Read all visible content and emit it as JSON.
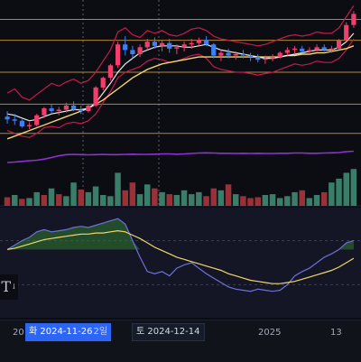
{
  "toolbar": {
    "text_tool_glyph": "T",
    "text_tool_sub": "↓"
  },
  "time_axis": {
    "ticks": [
      "20",
      "2025",
      "13"
    ],
    "crosshair_date_1": "화 2024-11-26",
    "crosshair_date_1_suffix": "2일",
    "crosshair_date_2": "토 2024-12-14"
  },
  "colors": {
    "background": "#0b0d12",
    "up_candle": "#f23d6d",
    "down_candle": "#3f7ff3",
    "ma_long": "#f2d56b",
    "ma_short": "#ffffff",
    "band": "#c61a4b",
    "indicator_line": "#8e32d6",
    "level_line": "#d39a3a",
    "volume_up": "#3f8a73",
    "volume_down": "#a8353e",
    "oscillator_fill": "#2f7a2f",
    "oscillator_line": "#6f6fd8"
  },
  "chart_data": {
    "type": "candlestick",
    "panes": [
      "price",
      "indicator",
      "volume",
      "oscillator"
    ],
    "price": {
      "candles": [
        [
          0.38,
          0.42,
          0.33,
          0.36
        ],
        [
          0.36,
          0.4,
          0.32,
          0.35
        ],
        [
          0.35,
          0.36,
          0.3,
          0.31
        ],
        [
          0.31,
          0.34,
          0.29,
          0.32
        ],
        [
          0.32,
          0.4,
          0.31,
          0.39
        ],
        [
          0.39,
          0.45,
          0.37,
          0.44
        ],
        [
          0.44,
          0.47,
          0.4,
          0.42
        ],
        [
          0.42,
          0.45,
          0.39,
          0.43
        ],
        [
          0.43,
          0.48,
          0.41,
          0.46
        ],
        [
          0.46,
          0.49,
          0.42,
          0.43
        ],
        [
          0.43,
          0.46,
          0.4,
          0.42
        ],
        [
          0.42,
          0.47,
          0.41,
          0.46
        ],
        [
          0.46,
          0.6,
          0.45,
          0.59
        ],
        [
          0.59,
          0.67,
          0.57,
          0.66
        ],
        [
          0.66,
          0.76,
          0.64,
          0.75
        ],
        [
          0.75,
          0.92,
          0.73,
          0.9
        ],
        [
          0.9,
          0.96,
          0.82,
          0.86
        ],
        [
          0.86,
          0.89,
          0.8,
          0.83
        ],
        [
          0.83,
          0.9,
          0.81,
          0.88
        ],
        [
          0.88,
          0.94,
          0.86,
          0.92
        ],
        [
          0.92,
          0.95,
          0.87,
          0.89
        ],
        [
          0.89,
          0.93,
          0.85,
          0.91
        ],
        [
          0.91,
          0.94,
          0.84,
          0.87
        ],
        [
          0.87,
          0.9,
          0.83,
          0.88
        ],
        [
          0.88,
          0.92,
          0.85,
          0.9
        ],
        [
          0.9,
          0.94,
          0.87,
          0.91
        ],
        [
          0.91,
          0.95,
          0.89,
          0.93
        ],
        [
          0.93,
          0.96,
          0.89,
          0.9
        ],
        [
          0.9,
          0.91,
          0.8,
          0.82
        ],
        [
          0.82,
          0.86,
          0.78,
          0.84
        ],
        [
          0.84,
          0.87,
          0.8,
          0.82
        ],
        [
          0.82,
          0.85,
          0.79,
          0.83
        ],
        [
          0.83,
          0.86,
          0.8,
          0.82
        ],
        [
          0.82,
          0.84,
          0.78,
          0.81
        ],
        [
          0.81,
          0.83,
          0.77,
          0.79
        ],
        [
          0.79,
          0.82,
          0.76,
          0.8
        ],
        [
          0.8,
          0.83,
          0.78,
          0.81
        ],
        [
          0.81,
          0.85,
          0.8,
          0.84
        ],
        [
          0.84,
          0.88,
          0.82,
          0.86
        ],
        [
          0.86,
          0.89,
          0.83,
          0.87
        ],
        [
          0.87,
          0.89,
          0.84,
          0.85
        ],
        [
          0.85,
          0.88,
          0.83,
          0.86
        ],
        [
          0.86,
          0.9,
          0.85,
          0.88
        ],
        [
          0.88,
          0.9,
          0.85,
          0.86
        ],
        [
          0.86,
          0.89,
          0.84,
          0.87
        ],
        [
          0.87,
          0.94,
          0.86,
          0.93
        ],
        [
          0.93,
          1.06,
          0.92,
          1.04
        ],
        [
          1.04,
          1.14,
          1.02,
          1.12
        ]
      ],
      "ma_long": [
        0.22,
        0.24,
        0.26,
        0.28,
        0.3,
        0.32,
        0.34,
        0.36,
        0.38,
        0.4,
        0.42,
        0.44,
        0.47,
        0.5,
        0.54,
        0.58,
        0.62,
        0.66,
        0.69,
        0.72,
        0.74,
        0.76,
        0.77,
        0.78,
        0.79,
        0.8,
        0.81,
        0.81,
        0.81,
        0.81,
        0.81,
        0.81,
        0.81,
        0.81,
        0.81,
        0.81,
        0.81,
        0.81,
        0.82,
        0.82,
        0.83,
        0.83,
        0.84,
        0.84,
        0.85,
        0.86,
        0.87,
        0.89
      ],
      "ma_short": [
        0.4,
        0.39,
        0.37,
        0.35,
        0.36,
        0.38,
        0.4,
        0.41,
        0.42,
        0.43,
        0.43,
        0.44,
        0.48,
        0.55,
        0.62,
        0.7,
        0.76,
        0.8,
        0.84,
        0.86,
        0.88,
        0.89,
        0.89,
        0.89,
        0.88,
        0.88,
        0.89,
        0.9,
        0.88,
        0.86,
        0.85,
        0.84,
        0.83,
        0.82,
        0.81,
        0.8,
        0.8,
        0.81,
        0.82,
        0.83,
        0.84,
        0.85,
        0.86,
        0.86,
        0.86,
        0.88,
        0.92,
        0.98
      ],
      "band_upper": [
        0.55,
        0.58,
        0.52,
        0.5,
        0.54,
        0.58,
        0.62,
        0.6,
        0.63,
        0.65,
        0.62,
        0.64,
        0.7,
        0.78,
        0.86,
        0.99,
        1.02,
        0.97,
        0.95,
        1.0,
        0.98,
        1.0,
        0.97,
        0.96,
        0.98,
        1.01,
        1.02,
        1.0,
        0.96,
        0.94,
        0.93,
        0.92,
        0.91,
        0.9,
        0.89,
        0.9,
        0.92,
        0.94,
        0.96,
        0.97,
        0.96,
        0.97,
        0.99,
        0.98,
        0.98,
        1.02,
        1.1,
        1.18
      ],
      "band_lower": [
        0.28,
        0.26,
        0.24,
        0.23,
        0.26,
        0.3,
        0.31,
        0.3,
        0.33,
        0.34,
        0.33,
        0.35,
        0.4,
        0.48,
        0.56,
        0.66,
        0.7,
        0.72,
        0.74,
        0.78,
        0.8,
        0.79,
        0.77,
        0.78,
        0.8,
        0.82,
        0.83,
        0.8,
        0.74,
        0.72,
        0.71,
        0.7,
        0.7,
        0.69,
        0.68,
        0.69,
        0.7,
        0.72,
        0.74,
        0.76,
        0.75,
        0.76,
        0.78,
        0.77,
        0.77,
        0.8,
        0.86,
        0.94
      ],
      "levels": [
        0.26,
        0.47,
        0.7,
        0.93,
        1.08
      ],
      "ylim": [
        0.18,
        1.22
      ]
    },
    "indicator": {
      "values": [
        0.2,
        0.22,
        0.25,
        0.28,
        0.3,
        0.35,
        0.42,
        0.5,
        0.55,
        0.56,
        0.55,
        0.54,
        0.55,
        0.56,
        0.55,
        0.55,
        0.56,
        0.57,
        0.56,
        0.56,
        0.57,
        0.58,
        0.58,
        0.57,
        0.58,
        0.6,
        0.62,
        0.63,
        0.62,
        0.61,
        0.61,
        0.6,
        0.61,
        0.6,
        0.61,
        0.6,
        0.6,
        0.61,
        0.61,
        0.62,
        0.62,
        0.61,
        0.61,
        0.62,
        0.63,
        0.64,
        0.68,
        0.7
      ],
      "ylim": [
        0,
        1
      ]
    },
    "volume": {
      "values": [
        0.22,
        0.28,
        0.18,
        0.2,
        0.35,
        0.28,
        0.45,
        0.3,
        0.25,
        0.6,
        0.42,
        0.35,
        0.5,
        0.28,
        0.25,
        0.85,
        0.4,
        0.6,
        0.3,
        0.55,
        0.45,
        0.35,
        0.3,
        0.28,
        0.4,
        0.3,
        0.35,
        0.25,
        0.45,
        0.4,
        0.55,
        0.3,
        0.25,
        0.2,
        0.22,
        0.28,
        0.3,
        0.2,
        0.25,
        0.35,
        0.4,
        0.2,
        0.28,
        0.35,
        0.6,
        0.7,
        0.85,
        0.95
      ],
      "up": [
        false,
        true,
        false,
        true,
        true,
        false,
        true,
        false,
        true,
        true,
        false,
        true,
        true,
        true,
        true,
        true,
        false,
        false,
        true,
        true,
        false,
        true,
        false,
        true,
        true,
        true,
        true,
        false,
        false,
        true,
        false,
        true,
        false,
        false,
        false,
        true,
        true,
        true,
        true,
        true,
        false,
        true,
        true,
        false,
        true,
        true,
        true,
        true
      ],
      "ylim": [
        0,
        1
      ]
    },
    "oscillator": {
      "values": [
        0.62,
        0.66,
        0.7,
        0.73,
        0.78,
        0.8,
        0.78,
        0.79,
        0.8,
        0.82,
        0.83,
        0.82,
        0.84,
        0.86,
        0.88,
        0.9,
        0.85,
        0.7,
        0.55,
        0.42,
        0.4,
        0.42,
        0.38,
        0.45,
        0.48,
        0.5,
        0.45,
        0.4,
        0.36,
        0.32,
        0.28,
        0.26,
        0.25,
        0.24,
        0.26,
        0.25,
        0.24,
        0.25,
        0.3,
        0.38,
        0.42,
        0.45,
        0.5,
        0.55,
        0.58,
        0.62,
        0.68,
        0.7
      ],
      "signal": [
        0.62,
        0.63,
        0.65,
        0.67,
        0.69,
        0.71,
        0.72,
        0.73,
        0.74,
        0.75,
        0.76,
        0.76,
        0.77,
        0.77,
        0.78,
        0.79,
        0.78,
        0.75,
        0.72,
        0.68,
        0.64,
        0.61,
        0.58,
        0.55,
        0.53,
        0.51,
        0.49,
        0.47,
        0.45,
        0.43,
        0.4,
        0.38,
        0.36,
        0.34,
        0.33,
        0.32,
        0.31,
        0.31,
        0.32,
        0.33,
        0.35,
        0.37,
        0.39,
        0.41,
        0.43,
        0.46,
        0.5,
        0.54
      ],
      "ylim": [
        0,
        1
      ]
    }
  }
}
